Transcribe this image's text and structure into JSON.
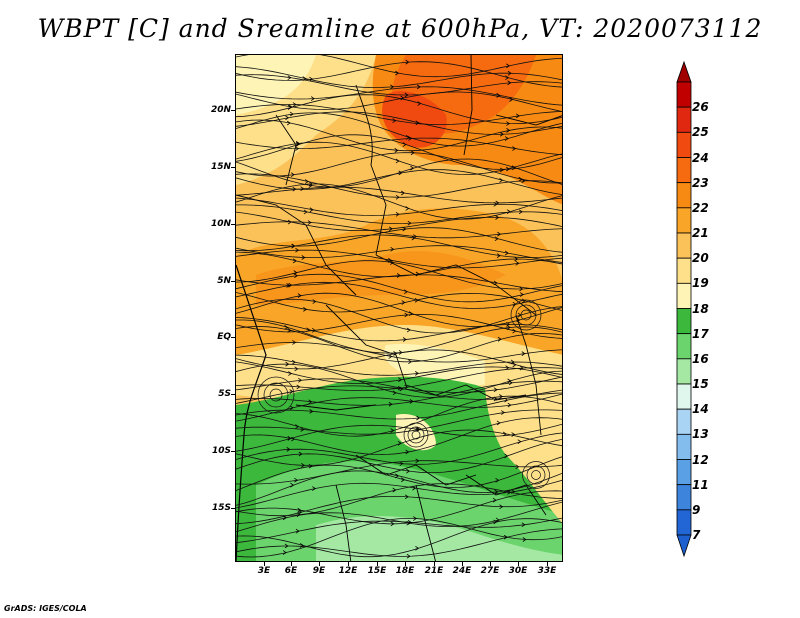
{
  "title": "WBPT [C] and Sreamline at 600hPa, VT: 2020073112",
  "credit": "GrADS: IGES/COLA",
  "map": {
    "lat_labels": [
      "20N",
      "15N",
      "10N",
      "5N",
      "EQ",
      "5S",
      "10S",
      "15S"
    ],
    "lon_labels": [
      "3E",
      "6E",
      "9E",
      "12E",
      "15E",
      "18E",
      "21E",
      "24E",
      "27E",
      "30E",
      "33E"
    ],
    "variable": "wet-bulb potential temperature",
    "overlay": "streamlines",
    "level": "600hPa"
  },
  "colorbar": {
    "labels": [
      "26",
      "25",
      "24",
      "23",
      "22",
      "21",
      "20",
      "19",
      "18",
      "17",
      "16",
      "15",
      "14",
      "13",
      "12",
      "11",
      "9",
      "7"
    ],
    "colors": [
      "#c00000",
      "#e02810",
      "#f04a10",
      "#f66a10",
      "#f78a12",
      "#f9a628",
      "#fbc25a",
      "#fde089",
      "#fef4b6",
      "#3cb83c",
      "#6cd46c",
      "#a4e8a4",
      "#e0f7ee",
      "#aad4f4",
      "#82bdee",
      "#5aa0e4",
      "#3c84dc",
      "#2266d6"
    ],
    "top_arrow_color": "#a00000",
    "bottom_arrow_color": "#1e60d0"
  }
}
